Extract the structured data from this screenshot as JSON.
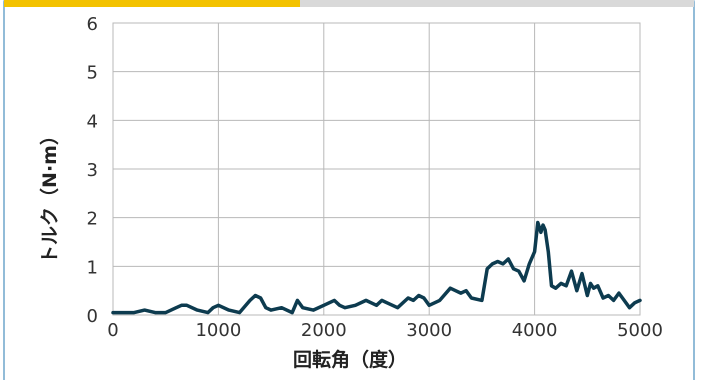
{
  "chart_data": {
    "type": "line",
    "xlabel": "回転角（度）",
    "ylabel": "トルク（N·m）",
    "xlim": [
      0,
      5000
    ],
    "ylim": [
      0,
      6
    ],
    "x_ticks": [
      0,
      1000,
      2000,
      3000,
      4000,
      5000
    ],
    "y_ticks": [
      0,
      1,
      2,
      3,
      4,
      5,
      6
    ],
    "grid": true,
    "colors": {
      "line": "#0d3b4f",
      "grid": "#b8b8b8",
      "tab_left": "#f3c200",
      "tab_right": "#d9d9d9"
    },
    "series": [
      {
        "x": [
          0,
          100,
          200,
          300,
          400,
          500,
          600,
          650,
          700,
          800,
          900,
          950,
          1000,
          1100,
          1200,
          1300,
          1350,
          1400,
          1450,
          1500,
          1600,
          1700,
          1750,
          1800,
          1900,
          2000,
          2100,
          2150,
          2200,
          2300,
          2400,
          2450,
          2500,
          2550,
          2600,
          2700,
          2800,
          2850,
          2900,
          2950,
          3000,
          3100,
          3200,
          3250,
          3300,
          3350,
          3400,
          3500,
          3550,
          3600,
          3650,
          3700,
          3750,
          3800,
          3850,
          3900,
          3950,
          4000,
          4030,
          4060,
          4080,
          4100,
          4130,
          4160,
          4200,
          4250,
          4300,
          4350,
          4400,
          4450,
          4500,
          4530,
          4560,
          4600,
          4650,
          4700,
          4750,
          4800,
          4850,
          4900,
          4950,
          5000
        ],
        "y": [
          0.05,
          0.05,
          0.05,
          0.1,
          0.05,
          0.05,
          0.15,
          0.2,
          0.2,
          0.1,
          0.05,
          0.15,
          0.2,
          0.1,
          0.05,
          0.3,
          0.4,
          0.35,
          0.15,
          0.1,
          0.15,
          0.05,
          0.3,
          0.15,
          0.1,
          0.2,
          0.3,
          0.2,
          0.15,
          0.2,
          0.3,
          0.25,
          0.2,
          0.3,
          0.25,
          0.15,
          0.35,
          0.3,
          0.4,
          0.35,
          0.2,
          0.3,
          0.55,
          0.5,
          0.45,
          0.5,
          0.35,
          0.3,
          0.95,
          1.05,
          1.1,
          1.05,
          1.15,
          0.95,
          0.9,
          0.7,
          1.05,
          1.3,
          1.9,
          1.7,
          1.85,
          1.75,
          1.3,
          0.6,
          0.55,
          0.65,
          0.6,
          0.9,
          0.5,
          0.85,
          0.4,
          0.65,
          0.55,
          0.6,
          0.35,
          0.4,
          0.3,
          0.45,
          0.3,
          0.15,
          0.25,
          0.3
        ]
      }
    ]
  }
}
